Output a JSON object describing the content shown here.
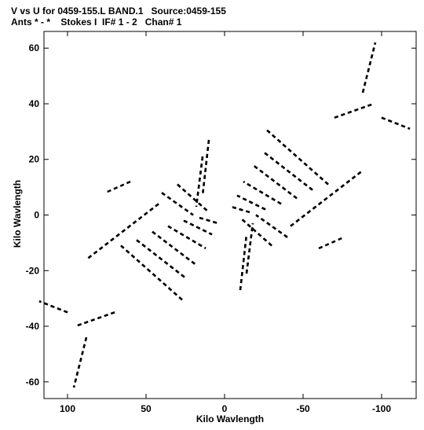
{
  "header": {
    "line1": "V vs U for 0459-155.L BAND.1   Source:0459-155",
    "line2": "Ants * - *    Stokes I  IF# 1 - 2   Chan# 1"
  },
  "chart_data": {
    "type": "scatter",
    "xlabel": "Kilo Wavlength",
    "ylabel": "Kilo Wavlength",
    "xlim": [
      115,
      -122
    ],
    "ylim": [
      -66,
      66
    ],
    "xticks": [
      100,
      50,
      0,
      -50,
      -100
    ],
    "yticks": [
      60,
      40,
      20,
      0,
      -20,
      -40,
      -60
    ],
    "point_style": "short dashes, black",
    "tracks": [
      {
        "x": [
          -66,
          -26
        ],
        "y": [
          11,
          31
        ]
      },
      {
        "x": [
          -56,
          -24
        ],
        "y": [
          9,
          23
        ]
      },
      {
        "x": [
          -46,
          -18
        ],
        "y": [
          6,
          18
        ]
      },
      {
        "x": [
          -36,
          -12
        ],
        "y": [
          4,
          12
        ]
      },
      {
        "x": [
          -26,
          -8
        ],
        "y": [
          2,
          7
        ]
      },
      {
        "x": [
          -16,
          -4
        ],
        "y": [
          1,
          3
        ]
      },
      {
        "x": [
          16,
          4
        ],
        "y": [
          -1,
          -3
        ]
      },
      {
        "x": [
          26,
          8
        ],
        "y": [
          -2,
          -7
        ]
      },
      {
        "x": [
          36,
          12
        ],
        "y": [
          -4,
          -12
        ]
      },
      {
        "x": [
          46,
          18
        ],
        "y": [
          -6,
          -18
        ]
      },
      {
        "x": [
          56,
          24
        ],
        "y": [
          -9,
          -23
        ]
      },
      {
        "x": [
          66,
          26
        ],
        "y": [
          -11,
          -31
        ]
      },
      {
        "x": [
          -30,
          -10
        ],
        "y": [
          -11,
          -1
        ]
      },
      {
        "x": [
          -40,
          -20
        ],
        "y": [
          -8,
          0
        ]
      },
      {
        "x": [
          30,
          10
        ],
        "y": [
          11,
          1
        ]
      },
      {
        "x": [
          40,
          20
        ],
        "y": [
          8,
          0
        ]
      },
      {
        "x": [
          10,
          14
        ],
        "y": [
          27,
          7
        ]
      },
      {
        "x": [
          14,
          18
        ],
        "y": [
          21,
          3
        ]
      },
      {
        "x": [
          -10,
          -14
        ],
        "y": [
          -27,
          -7
        ]
      },
      {
        "x": [
          -14,
          -18
        ],
        "y": [
          -21,
          -3
        ]
      },
      {
        "x": [
          -42,
          -88
        ],
        "y": [
          -4,
          16
        ]
      },
      {
        "x": [
          42,
          88
        ],
        "y": [
          4,
          -16
        ]
      },
      {
        "x": [
          -60,
          -76
        ],
        "y": [
          -12,
          -8
        ]
      },
      {
        "x": [
          -100,
          -118
        ],
        "y": [
          35,
          31
        ]
      },
      {
        "x": [
          -70,
          -95
        ],
        "y": [
          35,
          40
        ]
      },
      {
        "x": [
          -88,
          -96
        ],
        "y": [
          44,
          62
        ]
      },
      {
        "x": [
          100,
          118
        ],
        "y": [
          -35,
          -31
        ]
      },
      {
        "x": [
          70,
          95
        ],
        "y": [
          -35,
          -40
        ]
      },
      {
        "x": [
          88,
          96
        ],
        "y": [
          -44,
          -62
        ]
      }
    ]
  }
}
